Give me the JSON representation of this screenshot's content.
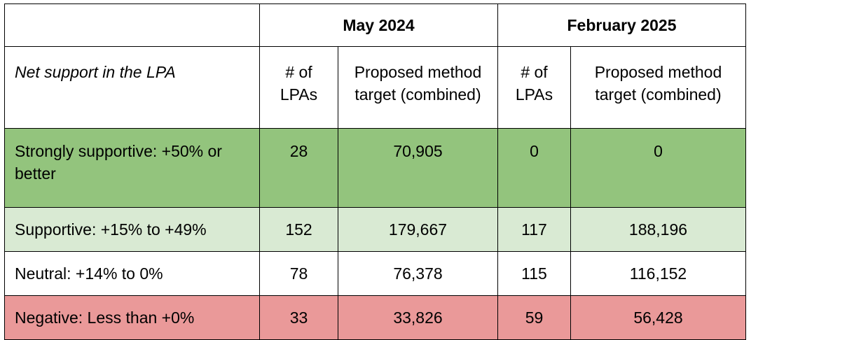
{
  "table": {
    "period_headers": [
      "May 2024",
      "February 2025"
    ],
    "column_headers": {
      "label": "Net support in the LPA",
      "count": "# of LPAs",
      "target": "Proposed method target (combined)"
    },
    "rows": [
      {
        "label": "Strongly supportive: +50% or better",
        "may_count": "28",
        "may_target": "70,905",
        "feb_count": "0",
        "feb_target": "0",
        "color": "#93c47d"
      },
      {
        "label": "Supportive: +15% to +49%",
        "may_count": "152",
        "may_target": "179,667",
        "feb_count": "117",
        "feb_target": "188,196",
        "color": "#d9ead3"
      },
      {
        "label": "Neutral: +14% to 0%",
        "may_count": "78",
        "may_target": "76,378",
        "feb_count": "115",
        "feb_target": "116,152",
        "color": "#ffffff"
      },
      {
        "label": "Negative: Less than +0%",
        "may_count": "33",
        "may_target": "33,826",
        "feb_count": "59",
        "feb_target": "56,428",
        "color": "#ea9999"
      }
    ]
  }
}
